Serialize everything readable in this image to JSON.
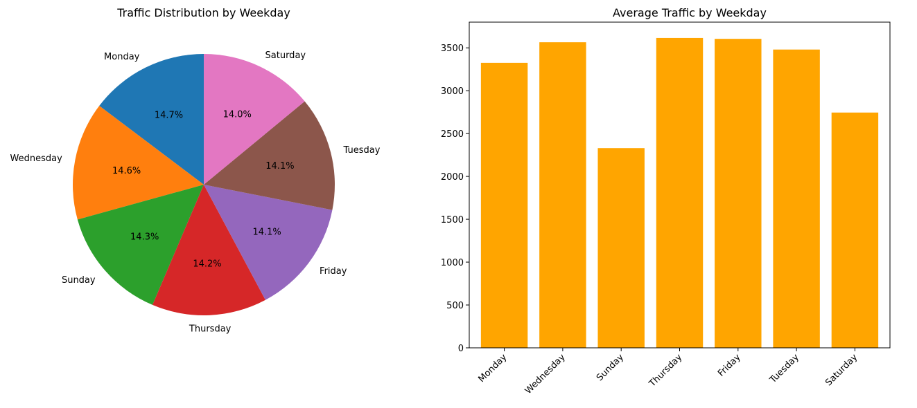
{
  "chart_data": [
    {
      "type": "pie",
      "title": "Traffic Distribution by Weekday",
      "labels": [
        "Monday",
        "Wednesday",
        "Sunday",
        "Thursday",
        "Friday",
        "Tuesday",
        "Saturday"
      ],
      "values": [
        14.7,
        14.6,
        14.3,
        14.2,
        14.1,
        14.1,
        14.0
      ],
      "value_labels": [
        "14.7%",
        "14.6%",
        "14.3%",
        "14.2%",
        "14.1%",
        "14.1%",
        "14.0%"
      ],
      "colors": [
        "#1f77b4",
        "#ff7f0e",
        "#2ca02c",
        "#d62728",
        "#9467bd",
        "#8c564b",
        "#e377c2"
      ],
      "start_angle_deg": 90,
      "direction": "counterclockwise"
    },
    {
      "type": "bar",
      "title": "Average Traffic by Weekday",
      "categories": [
        "Monday",
        "Wednesday",
        "Sunday",
        "Thursday",
        "Friday",
        "Tuesday",
        "Saturday"
      ],
      "values": [
        3325,
        3565,
        2330,
        3615,
        3605,
        3480,
        2745
      ],
      "color": "#ffa500",
      "ylim": [
        0,
        3800
      ],
      "yticks": [
        0,
        500,
        1000,
        1500,
        2000,
        2500,
        3000,
        3500
      ],
      "xlabel": "",
      "ylabel": "",
      "xtick_rotation_deg": 45,
      "grid": false
    }
  ]
}
